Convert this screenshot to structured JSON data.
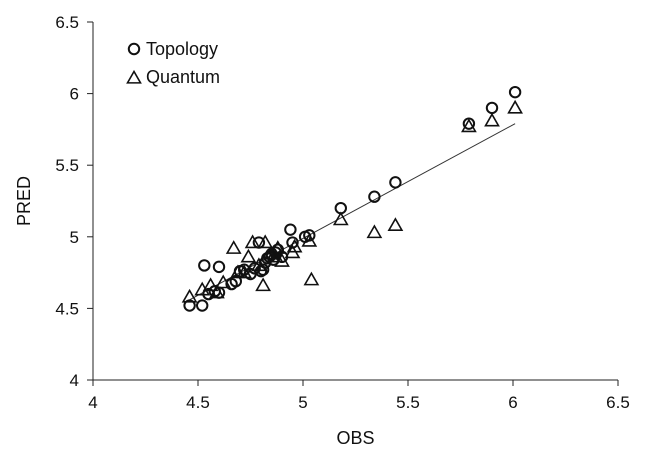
{
  "chart_data": {
    "type": "scatter",
    "title": "",
    "xlabel": "OBS",
    "ylabel": "PRED",
    "xlim": [
      4,
      6.5
    ],
    "ylim": [
      4,
      6.5
    ],
    "xticks": [
      "4",
      "4.5",
      "5",
      "5.5",
      "6",
      "6.5"
    ],
    "yticks": [
      "4",
      "4.5",
      "5",
      "5.5",
      "6",
      "6.5"
    ],
    "grid": false,
    "legend_position": "top-left",
    "series": [
      {
        "name": "Topology",
        "marker": "circle",
        "points": [
          [
            4.46,
            4.52
          ],
          [
            4.52,
            4.52
          ],
          [
            4.53,
            4.8
          ],
          [
            4.55,
            4.6
          ],
          [
            4.58,
            4.62
          ],
          [
            4.6,
            4.79
          ],
          [
            4.6,
            4.61
          ],
          [
            4.66,
            4.67
          ],
          [
            4.68,
            4.69
          ],
          [
            4.7,
            4.76
          ],
          [
            4.72,
            4.77
          ],
          [
            4.75,
            4.74
          ],
          [
            4.77,
            4.78
          ],
          [
            4.79,
            4.96
          ],
          [
            4.8,
            4.76
          ],
          [
            4.81,
            4.77
          ],
          [
            4.82,
            4.82
          ],
          [
            4.83,
            4.85
          ],
          [
            4.84,
            4.86
          ],
          [
            4.85,
            4.88
          ],
          [
            4.86,
            4.84
          ],
          [
            4.87,
            4.89
          ],
          [
            4.88,
            4.91
          ],
          [
            4.9,
            4.86
          ],
          [
            4.94,
            5.05
          ],
          [
            4.95,
            4.96
          ],
          [
            5.01,
            5.0
          ],
          [
            5.03,
            5.01
          ],
          [
            5.18,
            5.2
          ],
          [
            5.34,
            5.28
          ],
          [
            5.44,
            5.38
          ],
          [
            5.79,
            5.79
          ],
          [
            5.9,
            5.9
          ],
          [
            6.01,
            6.01
          ]
        ]
      },
      {
        "name": "Quantum",
        "marker": "triangle",
        "points": [
          [
            4.46,
            4.58
          ],
          [
            4.52,
            4.63
          ],
          [
            4.56,
            4.66
          ],
          [
            4.59,
            4.61
          ],
          [
            4.62,
            4.68
          ],
          [
            4.67,
            4.92
          ],
          [
            4.69,
            4.75
          ],
          [
            4.72,
            4.75
          ],
          [
            4.74,
            4.86
          ],
          [
            4.76,
            4.96
          ],
          [
            4.79,
            4.8
          ],
          [
            4.81,
            4.66
          ],
          [
            4.82,
            4.96
          ],
          [
            4.85,
            4.88
          ],
          [
            4.87,
            4.86
          ],
          [
            4.88,
            4.92
          ],
          [
            4.9,
            4.83
          ],
          [
            4.95,
            4.89
          ],
          [
            4.96,
            4.93
          ],
          [
            5.03,
            4.97
          ],
          [
            5.04,
            4.7
          ],
          [
            5.18,
            5.12
          ],
          [
            5.34,
            5.03
          ],
          [
            5.44,
            5.08
          ],
          [
            5.79,
            5.77
          ],
          [
            5.9,
            5.81
          ],
          [
            6.01,
            5.9
          ]
        ]
      }
    ],
    "trendline": {
      "x": [
        4.46,
        6.01
      ],
      "y": [
        4.56,
        5.79
      ]
    }
  }
}
